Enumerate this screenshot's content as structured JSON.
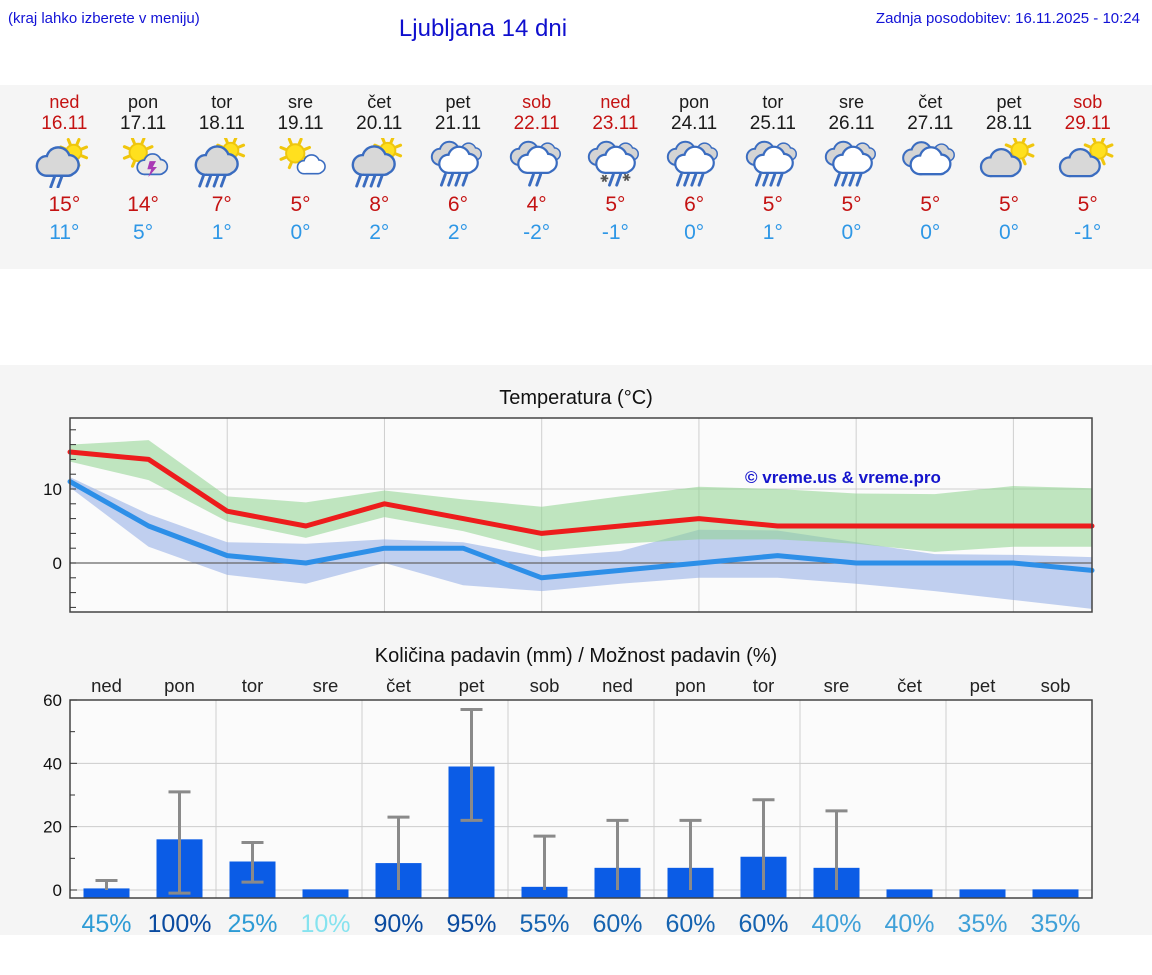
{
  "header": {
    "hint": "(kraj lahko izberete v meniju)",
    "title": "Ljubljana 14 dni",
    "last_update": "Zadnja posodobitev: 16.11.2025 - 10:24"
  },
  "colors": {
    "header_blue": "#1212d6",
    "weekend_red": "#c41212",
    "high_temp_red": "#c41212",
    "low_temp_blue": "#2e97e6",
    "bar_blue": "#0b5ce6",
    "band_gray": "#f5f5f5",
    "red_line": "#ed1c1c",
    "blue_line": "#2d8fe8",
    "green_band": "#8ed48e",
    "blue_band": "#8fabe6"
  },
  "forecast": {
    "days": [
      {
        "day": "ned",
        "date": "16.11",
        "weekend": true,
        "icon": "cloud-sun-rain-light",
        "high": "15°",
        "low": "11°"
      },
      {
        "day": "pon",
        "date": "17.11",
        "weekend": false,
        "icon": "sun-cloud-thunder",
        "high": "14°",
        "low": "5°"
      },
      {
        "day": "tor",
        "date": "18.11",
        "weekend": false,
        "icon": "cloud-sun-rain-heavy",
        "high": "7°",
        "low": "1°"
      },
      {
        "day": "sre",
        "date": "19.11",
        "weekend": false,
        "icon": "sun-cloud",
        "high": "5°",
        "low": "0°"
      },
      {
        "day": "čet",
        "date": "20.11",
        "weekend": false,
        "icon": "cloud-sun-rain-heavy",
        "high": "8°",
        "low": "2°"
      },
      {
        "day": "pet",
        "date": "21.11",
        "weekend": false,
        "icon": "clouds-rain-heavy",
        "high": "6°",
        "low": "2°"
      },
      {
        "day": "sob",
        "date": "22.11",
        "weekend": true,
        "icon": "clouds-rain-light",
        "high": "4°",
        "low": "-2°"
      },
      {
        "day": "ned",
        "date": "23.11",
        "weekend": true,
        "icon": "clouds-sleet",
        "high": "5°",
        "low": "-1°"
      },
      {
        "day": "pon",
        "date": "24.11",
        "weekend": false,
        "icon": "clouds-rain-heavy",
        "high": "6°",
        "low": "0°"
      },
      {
        "day": "tor",
        "date": "25.11",
        "weekend": false,
        "icon": "clouds-rain-heavy",
        "high": "5°",
        "low": "1°"
      },
      {
        "day": "sre",
        "date": "26.11",
        "weekend": false,
        "icon": "clouds-rain-heavy",
        "high": "5°",
        "low": "0°"
      },
      {
        "day": "čet",
        "date": "27.11",
        "weekend": false,
        "icon": "clouds",
        "high": "5°",
        "low": "0°"
      },
      {
        "day": "pet",
        "date": "28.11",
        "weekend": false,
        "icon": "cloud-sun",
        "high": "5°",
        "low": "0°"
      },
      {
        "day": "sob",
        "date": "29.11",
        "weekend": true,
        "icon": "cloud-sun",
        "high": "5°",
        "low": "-1°"
      }
    ]
  },
  "chart_data": [
    {
      "type": "line",
      "title": "Temperatura (°C)",
      "watermark": "© vreme.us & vreme.pro",
      "x": [
        "ned",
        "pon",
        "tor",
        "sre",
        "čet",
        "pet",
        "sob",
        "ned",
        "pon",
        "tor",
        "sre",
        "čet",
        "pet",
        "sob"
      ],
      "ylim": [
        -6.6,
        19.6
      ],
      "yticks": [
        0,
        10
      ],
      "grid": true,
      "series": [
        {
          "name": "max temperature",
          "color": "#ed1c1c",
          "values": [
            15,
            14,
            7,
            5,
            8,
            6,
            4,
            5,
            6,
            5,
            5,
            5,
            5,
            5
          ]
        },
        {
          "name": "min temperature",
          "color": "#2d8fe8",
          "values": [
            11,
            5,
            1,
            0,
            2,
            2,
            -2,
            -1,
            0,
            1,
            0,
            0,
            0,
            -1
          ]
        }
      ],
      "bands": [
        {
          "name": "max range",
          "color": "#8ed48e",
          "upper": [
            16,
            16.6,
            9,
            8.2,
            9.8,
            8.6,
            7.6,
            9,
            10.3,
            10,
            9.4,
            9.3,
            10.4,
            10.1
          ],
          "lower": [
            13.7,
            11.2,
            5.6,
            3.4,
            6.2,
            4.3,
            1.6,
            2.6,
            3.2,
            3.2,
            2.6,
            1.5,
            2.2,
            2.2
          ]
        },
        {
          "name": "min range",
          "color": "#8fabe6",
          "upper": [
            11.6,
            6.6,
            2.8,
            2.6,
            3.2,
            2.8,
            0.8,
            1.6,
            4.5,
            4.4,
            2.8,
            1.2,
            1.1,
            0.8
          ],
          "lower": [
            10.2,
            2.2,
            -1.6,
            -2.8,
            0,
            -3,
            -3.8,
            -2.8,
            -2,
            -2,
            -2.8,
            -3.8,
            -5,
            -6.2
          ]
        }
      ]
    },
    {
      "type": "bar",
      "title": "Količina padavin (mm) / Možnost padavin (%)",
      "categories": [
        "ned",
        "pon",
        "tor",
        "sre",
        "čet",
        "pet",
        "sob",
        "ned",
        "pon",
        "tor",
        "sre",
        "čet",
        "pet",
        "sob"
      ],
      "values": [
        0.5,
        16,
        9,
        0.2,
        8.5,
        39,
        1,
        7,
        7,
        10.5,
        7,
        0.2,
        0.2,
        0.2
      ],
      "err_low": [
        0,
        -1,
        2.5,
        null,
        0,
        22,
        0,
        0,
        0,
        0,
        0,
        null,
        null,
        null
      ],
      "err_high": [
        3,
        31,
        15,
        null,
        23,
        57,
        17,
        22,
        22,
        28.5,
        25,
        null,
        null,
        null
      ],
      "probabilities": [
        "45%",
        "100%",
        "25%",
        "10%",
        "90%",
        "95%",
        "55%",
        "60%",
        "60%",
        "60%",
        "40%",
        "40%",
        "35%",
        "35%"
      ],
      "prob_colors": [
        "#2d9bd5",
        "#0a4ba0",
        "#2d9bd5",
        "#86e3ef",
        "#0a4ba0",
        "#0a4ba0",
        "#1563b0",
        "#1563b0",
        "#1563b0",
        "#1563b0",
        "#3fa0d8",
        "#3fa0d8",
        "#3fa0d8",
        "#3fa0d8"
      ],
      "ylim": [
        -2.5,
        62
      ],
      "yticks": [
        0,
        20,
        40,
        60
      ],
      "grid": true,
      "bar_color": "#0b5ce6",
      "error_color": "#8a8a8a"
    }
  ]
}
